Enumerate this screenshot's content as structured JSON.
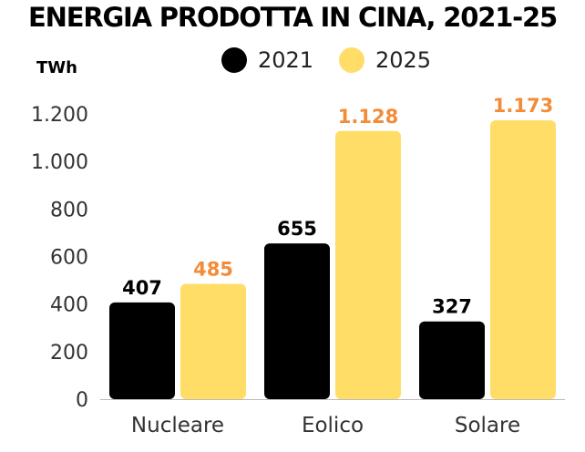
{
  "chart_data": {
    "type": "bar",
    "title": "ENERGIA PRODOTTA IN CINA, 2021-25",
    "ylabel": "TWh",
    "xlabel": "",
    "categories": [
      "Nucleare",
      "Eolico",
      "Solare"
    ],
    "series": [
      {
        "name": "2021",
        "values": [
          407,
          655,
          327
        ],
        "labels": [
          "407",
          "655",
          "327"
        ],
        "color": "#000000",
        "label_color": "#000000"
      },
      {
        "name": "2025",
        "values": [
          485,
          1128,
          1173
        ],
        "labels": [
          "485",
          "1.128",
          "1.173"
        ],
        "color": "#FFDD66",
        "label_color": "#F28C38"
      }
    ],
    "ylim": [
      0,
      1200
    ],
    "yticks": [
      0,
      200,
      400,
      600,
      800,
      1000,
      1200
    ],
    "ytick_labels": [
      "0",
      "200",
      "400",
      "600",
      "800",
      "1.000",
      "1.200"
    ],
    "grid": false,
    "legend_position": "top-center"
  }
}
